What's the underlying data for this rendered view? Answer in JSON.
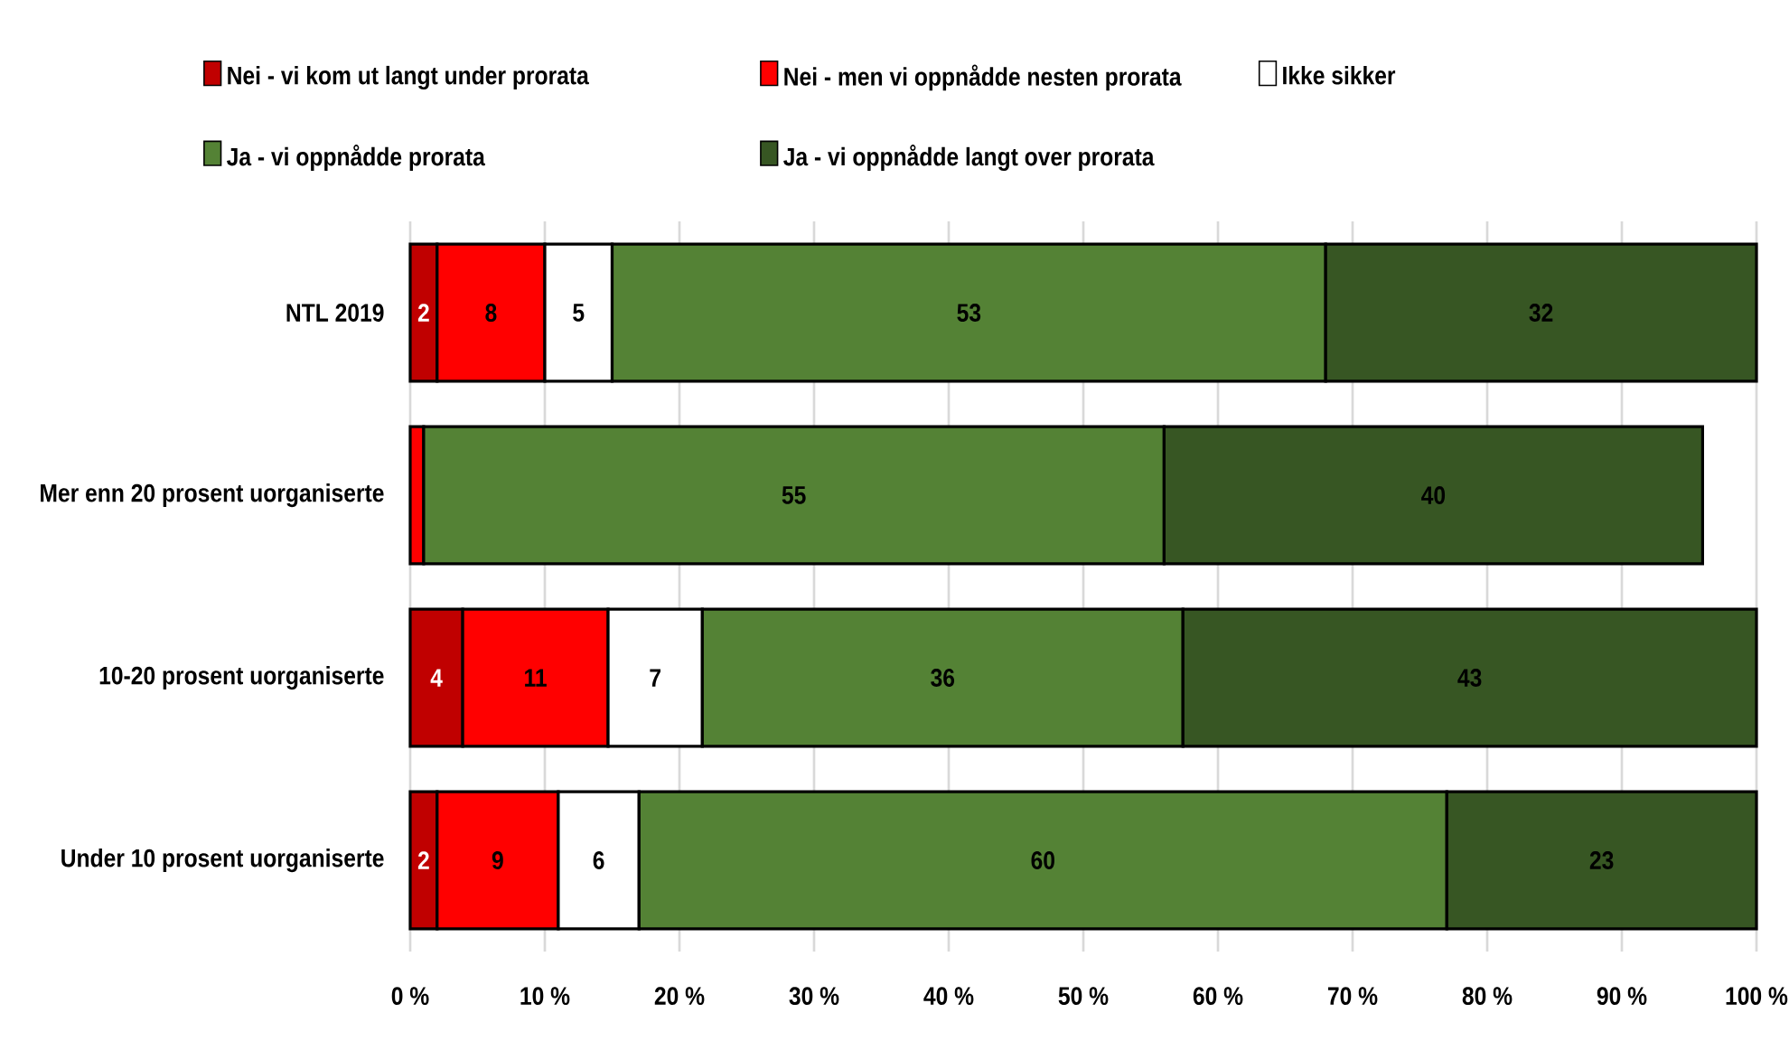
{
  "chart_data": {
    "type": "bar",
    "orientation": "horizontal",
    "stacked": true,
    "categories": [
      "NTL 2019",
      "Mer enn 20 prosent uorganiserte",
      "10-20 prosent uorganiserte",
      "Under 10 prosent uorganiserte"
    ],
    "series": [
      {
        "name": "Nei - vi kom ut langt under prorata",
        "color": "#c00000",
        "values": [
          2,
          null,
          3.9,
          2
        ],
        "value_labels": [
          "2",
          null,
          "4",
          "2"
        ]
      },
      {
        "name": "Nei - men vi oppnådde nesten prorata",
        "color": "#ff0000",
        "values": [
          8,
          1,
          10.8,
          9
        ],
        "value_labels": [
          "8",
          null,
          "11",
          "9"
        ]
      },
      {
        "name": "Ikke sikker",
        "color": "#ffffff",
        "values": [
          5,
          null,
          7,
          6
        ],
        "value_labels": [
          "5",
          null,
          "7",
          "6"
        ]
      },
      {
        "name": "Ja - vi oppnådde prorata",
        "color": "#548235",
        "values": [
          53,
          55,
          35.7,
          60
        ],
        "value_labels": [
          "53",
          "55",
          "36",
          "60"
        ]
      },
      {
        "name": "Ja - vi oppnådde langt over prorata",
        "color": "#375623",
        "values": [
          32,
          40,
          42.6,
          23
        ],
        "value_labels": [
          "32",
          "40",
          "43",
          "23"
        ]
      }
    ],
    "xlim": [
      0,
      100
    ],
    "xticks": [
      {
        "value": 0,
        "label": "0 %"
      },
      {
        "value": 10,
        "label": "10 %"
      },
      {
        "value": 20,
        "label": "20 %"
      },
      {
        "value": 30,
        "label": "30 %"
      },
      {
        "value": 40,
        "label": "40 %"
      },
      {
        "value": 50,
        "label": "50 %"
      },
      {
        "value": 60,
        "label": "60 %"
      },
      {
        "value": 70,
        "label": "70 %"
      },
      {
        "value": 80,
        "label": "80 %"
      },
      {
        "value": 90,
        "label": "90 %"
      },
      {
        "value": 100,
        "label": "100 %"
      }
    ],
    "grid": "x",
    "legend": "top"
  }
}
